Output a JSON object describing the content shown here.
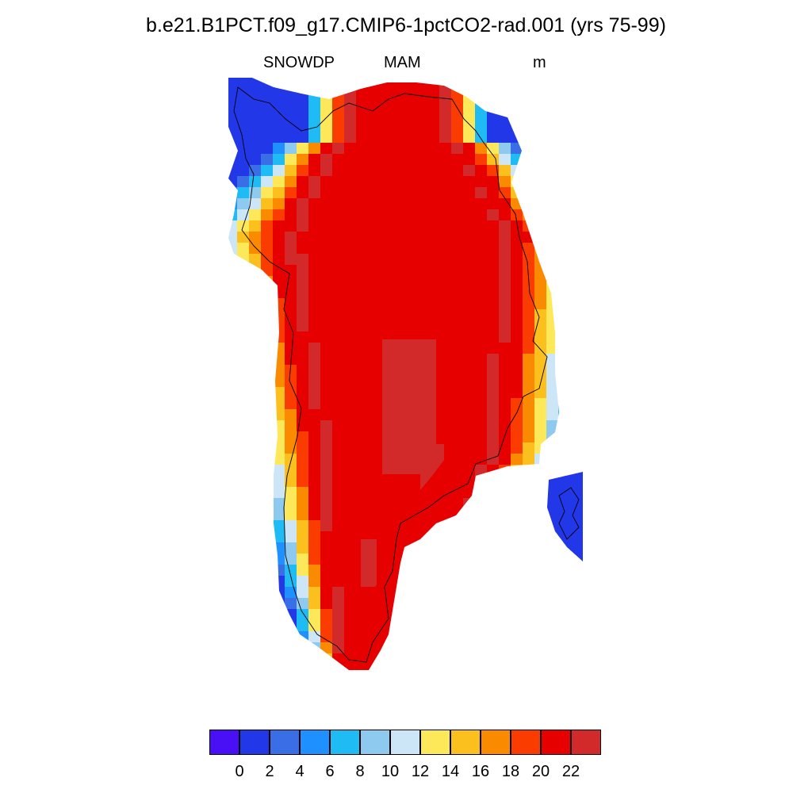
{
  "title": "b.e21.B1PCT.f09_g17.CMIP6-1pctCO2-rad.001 (yrs 75-99)",
  "subtitle": {
    "left": "SNOWDP",
    "center": "MAM",
    "right": "m"
  },
  "colorbar": {
    "colors": [
      "#4a10f5",
      "#2238e8",
      "#3a6ee6",
      "#1e90ff",
      "#1ebbf5",
      "#8ecaf0",
      "#cce6f7",
      "#fde85a",
      "#fbbf1e",
      "#fa8a00",
      "#fa3c00",
      "#e60000",
      "#d22a2a"
    ],
    "labels": [
      "0",
      "2",
      "4",
      "6",
      "8",
      "10",
      "12",
      "14",
      "16",
      "18",
      "20",
      "22"
    ]
  },
  "map": {
    "projection": "polar-stereographic",
    "region": "Greenland",
    "coastline_color": "#000000"
  }
}
